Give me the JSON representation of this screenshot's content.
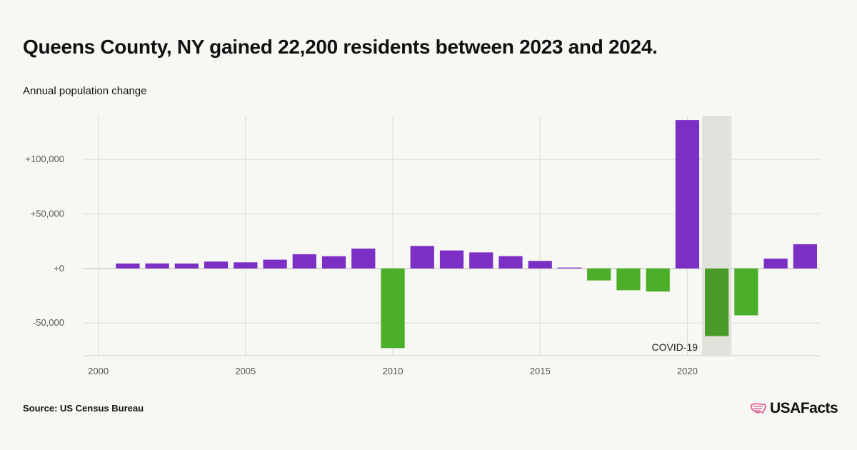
{
  "title": "Queens County, NY gained 22,200 residents between 2023 and 2024.",
  "subtitle": "Annual population change",
  "source": "Source: US Census Bureau",
  "logo_text": "USAFacts",
  "colors": {
    "positive": "#7b2fc4",
    "negative": "#4caf2a",
    "covid_negative": "#4a9a2a",
    "covid_band": "#e2e2dd",
    "logo_mark": "#e0508a"
  },
  "chart_data": {
    "type": "bar",
    "title": "",
    "xlabel": "",
    "ylabel": "Annual population change",
    "x_ticks": [
      "2000",
      "2005",
      "2010",
      "2015",
      "2020"
    ],
    "x_tick_values": [
      2000,
      2005,
      2010,
      2015,
      2020
    ],
    "y_ticks": [
      "+100,000",
      "+50,000",
      "+0",
      "-50,000"
    ],
    "y_tick_values": [
      100000,
      50000,
      0,
      -50000
    ],
    "xlim": [
      1999.5,
      2024.5
    ],
    "ylim": [
      -80000,
      140000
    ],
    "grid": true,
    "annotation": {
      "label": "COVID-19",
      "x_range": [
        2020.5,
        2021.5
      ]
    },
    "categories": [
      2001,
      2002,
      2003,
      2004,
      2005,
      2006,
      2007,
      2008,
      2009,
      2010,
      2011,
      2012,
      2013,
      2014,
      2015,
      2016,
      2017,
      2018,
      2019,
      2020,
      2021,
      2022,
      2023,
      2024
    ],
    "values": [
      4500,
      4600,
      4500,
      6300,
      5600,
      8000,
      13000,
      11200,
      18200,
      -73000,
      20600,
      16500,
      14700,
      11300,
      6900,
      800,
      -11000,
      -20000,
      -21200,
      136000,
      -62000,
      -43000,
      9000,
      22200
    ]
  }
}
